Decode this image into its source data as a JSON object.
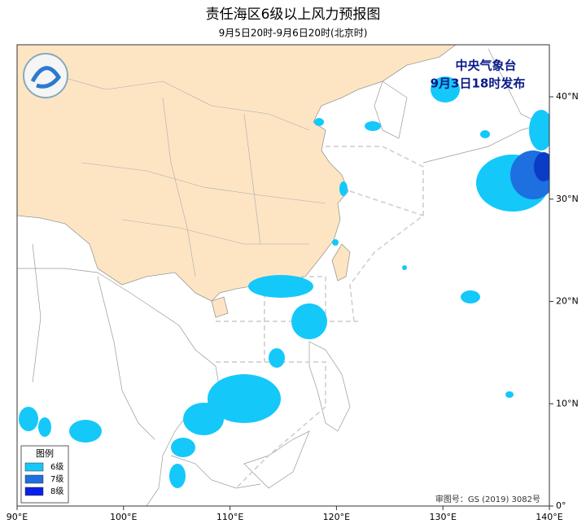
{
  "header": {
    "title": "责任海区6级以上风力预报图",
    "subtitle": "9月5日20时-9月6日20时(北京时)"
  },
  "issuer": {
    "name": "中央气象台",
    "time": "9月3日18时发布"
  },
  "map": {
    "x_ticks": [
      "90°E",
      "100°E",
      "110°E",
      "120°E",
      "130°E",
      "140°E"
    ],
    "y_ticks": [
      "0°",
      "10°N",
      "20°N",
      "30°N",
      "40°N"
    ]
  },
  "legend": {
    "title": "图例",
    "items": [
      "6级",
      "7级",
      "8级"
    ]
  },
  "footer": {
    "approval": "审图号：GS (2019) 3082号"
  }
}
